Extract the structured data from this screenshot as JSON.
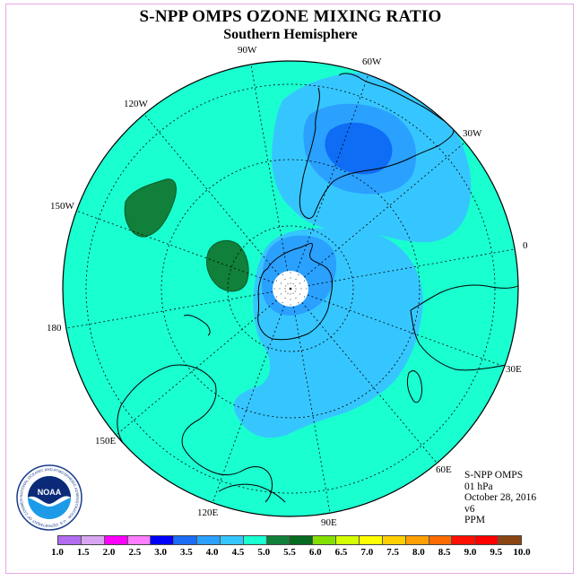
{
  "header": {
    "title": "S-NPP OMPS OZONE MIXING RATIO",
    "subtitle": "Southern Hemisphere"
  },
  "map": {
    "projection": "polar stereographic (south pole centered)",
    "longitude_labels": {
      "lon_90W": "90W",
      "lon_60W": "60W",
      "lon_120W": "120W",
      "lon_30W": "30W",
      "lon_150W": "150W",
      "lon_0": "0",
      "lon_180": "180",
      "lon_30E": "30E",
      "lon_150E": "150E",
      "lon_60E": "60E",
      "lon_120E": "120E",
      "lon_90E": "90E"
    },
    "background_level_color": "#19ffd0",
    "contour_colors": {
      "level_3_0_3_5": "#0f6cf5",
      "level_3_5_4_0": "#2aa0ff",
      "level_4_0_4_5": "#36c6ff",
      "level_5_0_5_5": "#10803a"
    },
    "polar_missing_color": "#ffffff"
  },
  "info": {
    "instrument": "S-NPP OMPS",
    "pressure": "01 hPa",
    "date": "October 28, 2016",
    "version": "v6",
    "units": "PPM"
  },
  "logo": {
    "text": "NOAA",
    "ring_text": "NATIONAL OCEANIC AND ATMOSPHERIC ADMINISTRATION · U.S. DEPARTMENT OF COMMERCE"
  },
  "colorbar": {
    "colors": [
      "#b26cf0",
      "#d8a6f0",
      "#ff00ff",
      "#ff7dff",
      "#0000ff",
      "#1c6cf5",
      "#2aa0ff",
      "#36c6ff",
      "#19ffd0",
      "#10803a",
      "#066b20",
      "#84e000",
      "#d4ff00",
      "#ffff00",
      "#ffd000",
      "#ffa000",
      "#ff6a00",
      "#ff1000",
      "#ff0000",
      "#8b4513"
    ],
    "tick_labels": [
      "1.0",
      "1.5",
      "2.0",
      "2.5",
      "3.0",
      "3.5",
      "4.0",
      "4.5",
      "5.0",
      "5.5",
      "6.0",
      "6.5",
      "7.0",
      "7.5",
      "8.0",
      "8.5",
      "9.0",
      "9.5",
      "10.0"
    ]
  }
}
